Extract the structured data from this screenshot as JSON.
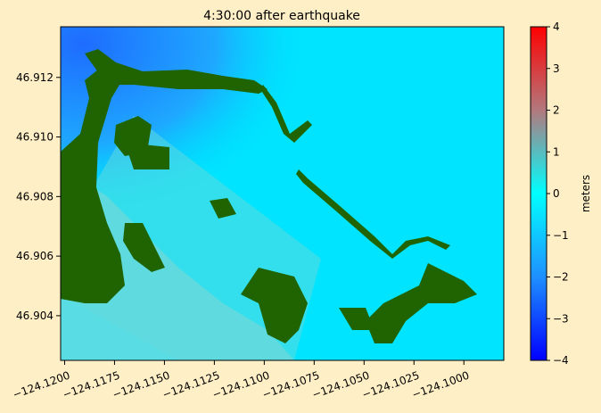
{
  "chart_data": {
    "type": "heatmap",
    "title": "4:30:00 after earthquake",
    "xlabel": "",
    "ylabel": "",
    "xlim": [
      -124.1202,
      -124.098
    ],
    "ylim": [
      46.9025,
      46.9137
    ],
    "xticks": [
      -124.12,
      -124.1175,
      -124.115,
      -124.1125,
      -124.11,
      -124.1075,
      -124.105,
      -124.1025,
      -124.1
    ],
    "xtick_labels": [
      "−124.1200",
      "−124.1175",
      "−124.1150",
      "−124.1125",
      "−124.1100",
      "−124.1075",
      "−124.1050",
      "−124.1025",
      "−124.1000"
    ],
    "yticks": [
      46.904,
      46.906,
      46.908,
      46.91,
      46.912
    ],
    "ytick_labels": [
      "46.904",
      "46.906",
      "46.908",
      "46.910",
      "46.912"
    ],
    "colorbar": {
      "label": "meters",
      "min": -4,
      "max": 4,
      "ticks": [
        -4,
        -3,
        -2,
        -1,
        0,
        1,
        2,
        3,
        4
      ],
      "tick_labels": [
        "−4",
        "−3",
        "−2",
        "−1",
        "0",
        "1",
        "2",
        "3",
        "4"
      ],
      "colors": [
        "#0000ff",
        "#1e90ff",
        "#00ffff",
        "#b2787d",
        "#ff0000"
      ]
    },
    "dominant_value": 0,
    "land_color": "#1f6400",
    "grid": false,
    "legend": "none"
  }
}
